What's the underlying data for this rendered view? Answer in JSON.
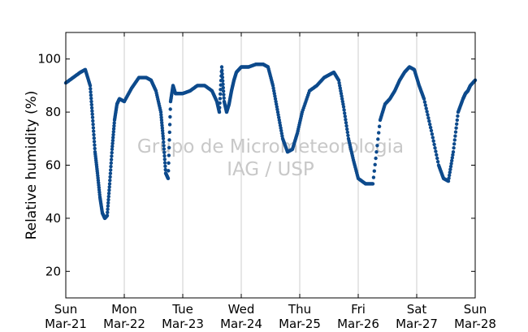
{
  "chart_data": {
    "type": "scatter",
    "title": "",
    "ylabel": "Relative humidity (%)",
    "xlabel": "",
    "xlim": [
      "2021-03-21 00:00",
      "2021-03-28 00:00"
    ],
    "ylim": [
      10,
      110
    ],
    "yticks": [
      20,
      40,
      60,
      80,
      100
    ],
    "xticks": [
      {
        "x": "2021-03-21 00:00",
        "day": "Sun",
        "date": "Mar-21"
      },
      {
        "x": "2021-03-22 00:00",
        "day": "Mon",
        "date": "Mar-22"
      },
      {
        "x": "2021-03-23 00:00",
        "day": "Tue",
        "date": "Mar-23"
      },
      {
        "x": "2021-03-24 00:00",
        "day": "Wed",
        "date": "Mar-24"
      },
      {
        "x": "2021-03-25 00:00",
        "day": "Thu",
        "date": "Mar-25"
      },
      {
        "x": "2021-03-26 00:00",
        "day": "Fri",
        "date": "Mar-26"
      },
      {
        "x": "2021-03-27 00:00",
        "day": "Sat",
        "date": "Mar-27"
      },
      {
        "x": "2021-03-28 00:00",
        "day": "Sun",
        "date": "Mar-28"
      }
    ],
    "grid": "vertical",
    "marker_color": "#0d4a8c",
    "watermark": [
      "Grupo de Micrometeorologia",
      "IAG / USP"
    ],
    "series": [
      {
        "x": [
          "2021-03-21 00:00",
          "2021-03-21 03:00",
          "2021-03-21 06:00",
          "2021-03-21 08:00",
          "2021-03-21 10:00",
          "2021-03-21 11:00",
          "2021-03-21 12:00",
          "2021-03-21 13:00",
          "2021-03-21 14:00",
          "2021-03-21 15:00",
          "2021-03-21 16:00",
          "2021-03-21 17:00",
          "2021-03-21 18:00",
          "2021-03-21 19:00",
          "2021-03-21 20:00",
          "2021-03-21 21:00",
          "2021-03-21 22:00",
          "2021-03-22 00:00",
          "2021-03-22 03:00",
          "2021-03-22 06:00",
          "2021-03-22 09:00",
          "2021-03-22 11:00",
          "2021-03-22 13:00",
          "2021-03-22 15:00",
          "2021-03-22 16:00",
          "2021-03-22 17:00",
          "2021-03-22 18:00",
          "2021-03-22 19:00",
          "2021-03-22 20:00",
          "2021-03-22 21:00",
          "2021-03-22 22:00",
          "2021-03-23 00:00",
          "2021-03-23 03:00",
          "2021-03-23 06:00",
          "2021-03-23 09:00",
          "2021-03-23 12:00",
          "2021-03-23 14:00",
          "2021-03-23 15:00",
          "2021-03-23 16:00",
          "2021-03-23 17:00",
          "2021-03-23 18:00",
          "2021-03-23 19:00",
          "2021-03-23 20:00",
          "2021-03-23 21:00",
          "2021-03-23 22:00",
          "2021-03-24 00:00",
          "2021-03-24 03:00",
          "2021-03-24 06:00",
          "2021-03-24 09:00",
          "2021-03-24 11:00",
          "2021-03-24 13:00",
          "2021-03-24 15:00",
          "2021-03-24 17:00",
          "2021-03-24 19:00",
          "2021-03-24 21:00",
          "2021-03-24 23:00",
          "2021-03-25 01:00",
          "2021-03-25 04:00",
          "2021-03-25 07:00",
          "2021-03-25 10:00",
          "2021-03-25 12:00",
          "2021-03-25 14:00",
          "2021-03-25 16:00",
          "2021-03-25 18:00",
          "2021-03-25 20:00",
          "2021-03-25 22:00",
          "2021-03-26 00:00",
          "2021-03-26 03:00",
          "2021-03-26 06:00",
          "2021-03-26 09:00",
          "2021-03-26 11:00",
          "2021-03-26 13:00",
          "2021-03-26 15:00",
          "2021-03-26 17:00",
          "2021-03-26 19:00",
          "2021-03-26 21:00",
          "2021-03-26 23:00",
          "2021-03-27 01:00",
          "2021-03-27 03:00",
          "2021-03-27 06:00",
          "2021-03-27 09:00",
          "2021-03-27 11:00",
          "2021-03-27 13:00",
          "2021-03-27 15:00",
          "2021-03-27 17:00",
          "2021-03-27 19:00",
          "2021-03-27 20:00",
          "2021-03-27 21:00",
          "2021-03-27 22:00",
          "2021-03-28 00:00"
        ],
        "y": [
          91,
          93,
          95,
          96,
          90,
          78,
          65,
          57,
          48,
          42,
          40,
          41,
          53,
          66,
          77,
          83,
          85,
          84,
          89,
          93,
          93,
          92,
          88,
          80,
          70,
          57,
          55,
          84,
          90,
          87,
          87,
          87,
          88,
          90,
          90,
          88,
          84,
          80,
          97,
          84,
          80,
          83,
          88,
          92,
          95,
          97,
          97,
          98,
          98,
          97,
          90,
          80,
          70,
          65,
          66,
          72,
          80,
          88,
          90,
          93,
          94,
          95,
          92,
          82,
          70,
          62,
          55,
          53,
          53,
          77,
          83,
          85,
          88,
          92,
          95,
          97,
          96,
          90,
          85,
          73,
          60,
          55,
          54,
          65,
          80,
          85,
          87,
          88,
          90,
          92
        ]
      }
    ]
  }
}
